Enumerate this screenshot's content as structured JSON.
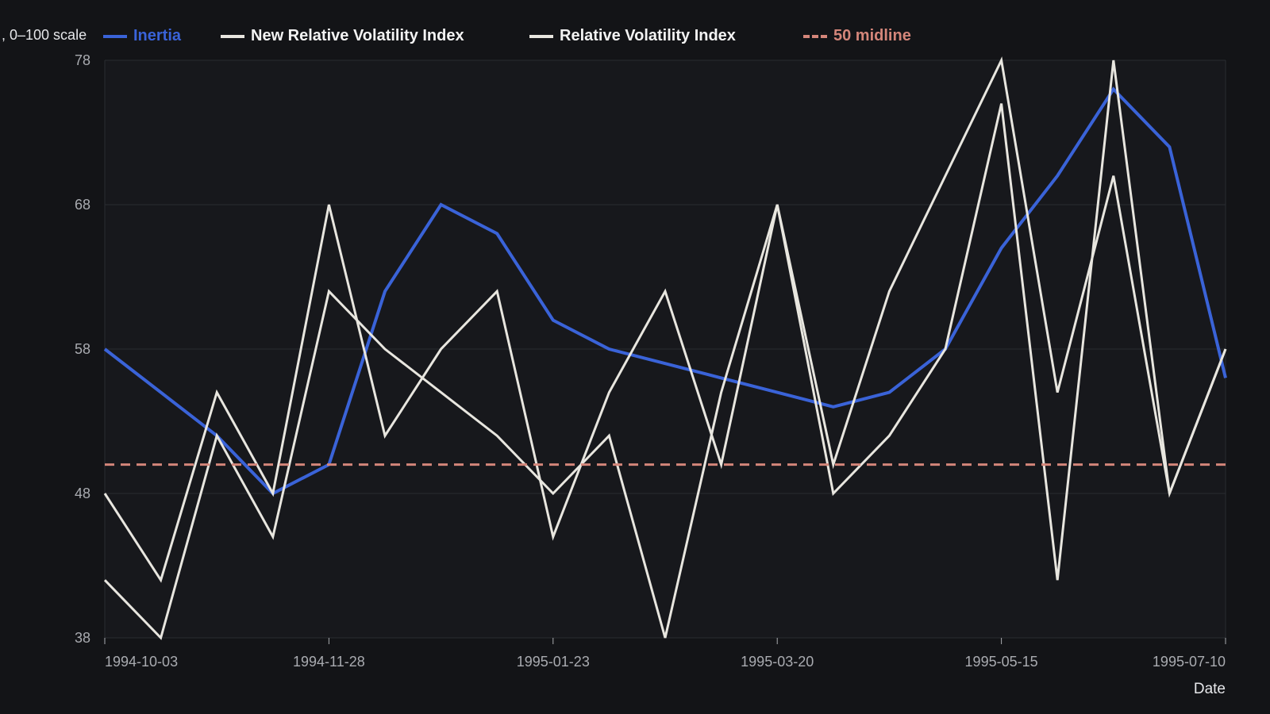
{
  "chart_data": {
    "type": "line",
    "title": "",
    "ylabel": ", 0–100 scale",
    "xlabel": "Date",
    "ylim": [
      38,
      78
    ],
    "yticks": [
      38,
      48,
      58,
      68,
      78
    ],
    "xticks": [
      "1994-10-03",
      "1994-11-28",
      "1995-01-23",
      "1995-03-20",
      "1995-05-15",
      "1995-07-10"
    ],
    "x": [
      "1994-10-03",
      "1994-10-17",
      "1994-10-31",
      "1994-11-14",
      "1994-11-28",
      "1994-12-12",
      "1994-12-26",
      "1995-01-09",
      "1995-01-23",
      "1995-02-06",
      "1995-02-20",
      "1995-03-06",
      "1995-03-20",
      "1995-04-03",
      "1995-04-17",
      "1995-05-01",
      "1995-05-15",
      "1995-05-29",
      "1995-06-12",
      "1995-06-26",
      "1995-07-10"
    ],
    "grid": true,
    "legend_position": "top",
    "series": [
      {
        "name": "Inertia",
        "color": "#3a63d8",
        "values": [
          58,
          55,
          52,
          48,
          50,
          62,
          68,
          66,
          60,
          58,
          57,
          56,
          55,
          54,
          55,
          58,
          65,
          70,
          76,
          72,
          56
        ]
      },
      {
        "name": "New Relative Volatility Index",
        "color": "#e8e6df",
        "values": [
          42,
          38,
          52,
          45,
          62,
          58,
          55,
          52,
          48,
          52,
          38,
          55,
          68,
          48,
          52,
          58,
          75,
          42,
          78,
          48,
          58
        ]
      },
      {
        "name": "Relative Volatility Index",
        "color": "#e8e6df",
        "values": [
          48,
          42,
          55,
          48,
          68,
          52,
          58,
          62,
          45,
          55,
          62,
          50,
          68,
          50,
          62,
          70,
          78,
          55,
          70,
          48,
          58
        ]
      },
      {
        "name": "50 midline",
        "color": "#d4867a",
        "dashed": true,
        "values": [
          50,
          50,
          50,
          50,
          50,
          50,
          50,
          50,
          50,
          50,
          50,
          50,
          50,
          50,
          50,
          50,
          50,
          50,
          50,
          50,
          50
        ]
      }
    ]
  },
  "colors": {
    "background": "#131417",
    "plot_background": "#17181c",
    "grid": "#2a2c31",
    "axis_text": "#a9abb0",
    "label_text": "#e6e7ea"
  }
}
